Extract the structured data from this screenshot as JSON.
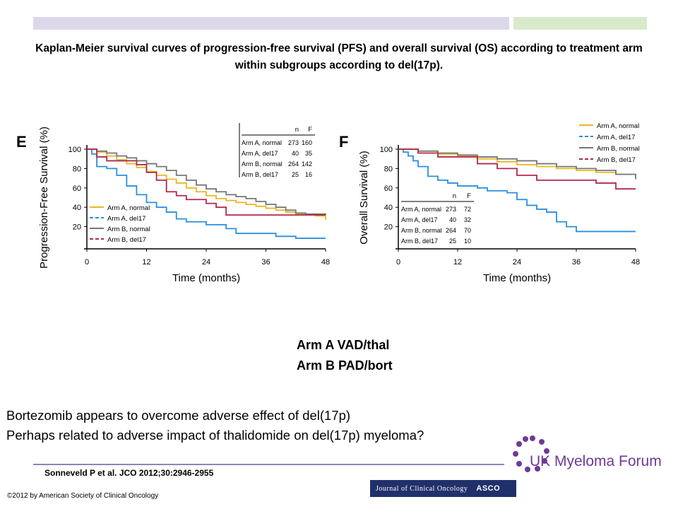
{
  "slide": {
    "title": "Kaplan-Meier survival curves of progression-free survival (PFS) and overall survival (OS) according to treatment arm within subgroups according to del(17p).",
    "arms": [
      "Arm A VAD/thal",
      "Arm B PAD/bort"
    ],
    "conclusion": [
      "Bortezomib appears to overcome adverse effect of del(17p)",
      "Perhaps related to adverse impact of thalidomide on del(17p) myeloma?"
    ],
    "citation": "Sonneveld P et al. JCO 2012;30:2946-2955",
    "copyright": "©2012 by American Society of Clinical Oncology",
    "journal_logo": "Journal of Clinical Oncology",
    "journal_mark": "ASCO",
    "forum_logo": "UK Myeloma Forum"
  },
  "colors": {
    "arm_a_normal": "#e8b923",
    "arm_a_del17": "#2b8fe0",
    "arm_b_normal": "#777777",
    "arm_b_del17": "#b02a4a",
    "header_purple": "#dcd8ea",
    "header_green": "#d9eacb",
    "logo_purple": "#6e3a96"
  },
  "chart_data": [
    {
      "type": "line",
      "panel": "E",
      "ylabel": "Progression-Free Survival (%)",
      "xlabel": "Time (months)",
      "xlim": [
        0,
        48
      ],
      "ylim": [
        0,
        100
      ],
      "xticks": [
        0,
        12,
        24,
        36,
        48
      ],
      "yticks": [
        20,
        40,
        60,
        80,
        100
      ],
      "legend_position": "bottom-left",
      "table_position": "top-right",
      "table_headers": [
        "n",
        "F"
      ],
      "series": [
        {
          "name": "Arm A, normal",
          "color": "#e8b923",
          "n": "273",
          "F": "160",
          "x": [
            0,
            2,
            4,
            6,
            8,
            10,
            12,
            14,
            16,
            18,
            20,
            22,
            24,
            26,
            28,
            30,
            32,
            34,
            36,
            38,
            40,
            42,
            44,
            46,
            48
          ],
          "y": [
            100,
            97,
            93,
            89,
            85,
            81,
            77,
            73,
            69,
            65,
            60,
            56,
            52,
            49,
            47,
            45,
            43,
            41,
            39,
            37,
            35,
            33,
            32,
            31,
            27
          ]
        },
        {
          "name": "Arm A, del17",
          "color": "#2b8fe0",
          "n": "40",
          "F": "35",
          "x": [
            0,
            1,
            2,
            4,
            6,
            8,
            10,
            12,
            14,
            16,
            18,
            20,
            22,
            24,
            26,
            28,
            30,
            32,
            34,
            36,
            38,
            40,
            42,
            44,
            46,
            48
          ],
          "y": [
            100,
            95,
            82,
            80,
            73,
            62,
            53,
            45,
            40,
            35,
            28,
            25,
            25,
            22,
            22,
            18,
            13,
            13,
            13,
            13,
            10,
            10,
            8,
            8,
            8,
            8
          ]
        },
        {
          "name": "Arm B, normal",
          "color": "#777777",
          "n": "264",
          "F": "142",
          "x": [
            0,
            2,
            4,
            6,
            8,
            10,
            12,
            14,
            16,
            18,
            20,
            22,
            24,
            26,
            28,
            30,
            32,
            34,
            36,
            38,
            40,
            42,
            44,
            46,
            48
          ],
          "y": [
            100,
            98,
            96,
            93,
            91,
            88,
            85,
            82,
            78,
            73,
            68,
            63,
            59,
            56,
            53,
            51,
            49,
            46,
            43,
            40,
            37,
            34,
            33,
            33,
            32
          ]
        },
        {
          "name": "Arm B, del17",
          "color": "#b02a4a",
          "n": "25",
          "F": "16",
          "x": [
            0,
            2,
            4,
            6,
            8,
            10,
            12,
            14,
            16,
            18,
            20,
            22,
            24,
            26,
            28,
            30,
            32,
            34,
            36,
            38,
            40,
            42,
            44,
            46,
            48
          ],
          "y": [
            100,
            92,
            88,
            88,
            88,
            84,
            76,
            68,
            56,
            52,
            48,
            48,
            44,
            40,
            32,
            32,
            32,
            32,
            32,
            32,
            32,
            32,
            32,
            32,
            32
          ]
        }
      ]
    },
    {
      "type": "line",
      "panel": "F",
      "ylabel": "Overall Survival (%)",
      "xlabel": "Time (months)",
      "xlim": [
        0,
        48
      ],
      "ylim": [
        0,
        100
      ],
      "xticks": [
        0,
        12,
        24,
        36,
        48
      ],
      "yticks": [
        20,
        40,
        60,
        80,
        100
      ],
      "legend_position": "top-right",
      "table_position": "bottom-left",
      "table_headers": [
        "n",
        "F"
      ],
      "series": [
        {
          "name": "Arm A, normal",
          "color": "#e8b923",
          "n": "273",
          "F": "72",
          "x": [
            0,
            4,
            8,
            12,
            16,
            20,
            24,
            28,
            32,
            36,
            40,
            44,
            48
          ],
          "y": [
            100,
            98,
            95,
            93,
            90,
            87,
            84,
            82,
            80,
            78,
            76,
            74,
            70
          ]
        },
        {
          "name": "Arm A, del17",
          "color": "#2b8fe0",
          "n": "40",
          "F": "32",
          "x": [
            0,
            1,
            2,
            3,
            4,
            6,
            8,
            10,
            12,
            14,
            16,
            18,
            20,
            22,
            24,
            26,
            28,
            30,
            32,
            34,
            36,
            40,
            44,
            48
          ],
          "y": [
            100,
            97,
            93,
            88,
            82,
            72,
            68,
            65,
            62,
            62,
            60,
            57,
            57,
            55,
            48,
            42,
            38,
            35,
            25,
            20,
            15,
            15,
            15,
            15
          ]
        },
        {
          "name": "Arm B, normal",
          "color": "#777777",
          "n": "264",
          "F": "70",
          "x": [
            0,
            4,
            8,
            12,
            16,
            20,
            24,
            28,
            32,
            36,
            40,
            44,
            48
          ],
          "y": [
            100,
            98,
            96,
            94,
            92,
            90,
            88,
            85,
            82,
            80,
            78,
            74,
            69
          ]
        },
        {
          "name": "Arm B, del17",
          "color": "#b02a4a",
          "n": "25",
          "F": "10",
          "x": [
            0,
            4,
            8,
            12,
            15,
            16,
            20,
            24,
            28,
            32,
            36,
            40,
            44,
            48
          ],
          "y": [
            100,
            96,
            92,
            92,
            92,
            85,
            80,
            73,
            68,
            68,
            68,
            65,
            59,
            59
          ]
        }
      ]
    }
  ]
}
